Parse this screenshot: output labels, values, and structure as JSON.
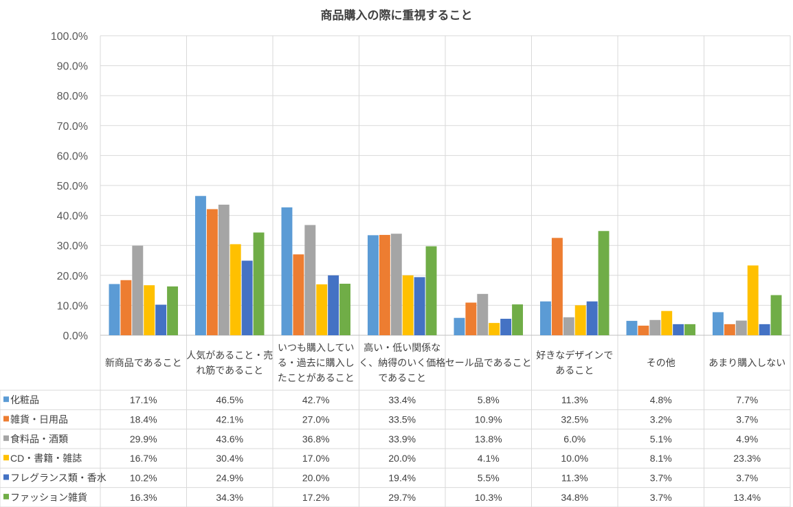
{
  "chart_data": {
    "type": "bar",
    "title": "商品購入の際に重視すること",
    "xlabel": "",
    "ylabel": "",
    "ylim": [
      0,
      100
    ],
    "yticks": [
      "0.0%",
      "10.0%",
      "20.0%",
      "30.0%",
      "40.0%",
      "50.0%",
      "60.0%",
      "70.0%",
      "80.0%",
      "90.0%",
      "100.0%"
    ],
    "grid": true,
    "legend": "data-table-left",
    "categories": [
      [
        "新商品であること"
      ],
      [
        "人気があること・売",
        "れ筋であること"
      ],
      [
        "いつも購入してい",
        "る・過去に購入し",
        "たことがあること"
      ],
      [
        "高い・低い関係な",
        "く、納得のいく価格",
        "であること"
      ],
      [
        "セール品であること"
      ],
      [
        "好きなデザインで",
        "あること"
      ],
      [
        "その他"
      ],
      [
        "あまり購入しない"
      ]
    ],
    "series": [
      {
        "name": "化粧品",
        "color": "#5B9BD5",
        "values": [
          17.1,
          46.5,
          42.7,
          33.4,
          5.8,
          11.3,
          4.8,
          7.7
        ],
        "labels": [
          "17.1%",
          "46.5%",
          "42.7%",
          "33.4%",
          "5.8%",
          "11.3%",
          "4.8%",
          "7.7%"
        ]
      },
      {
        "name": "雑貨・日用品",
        "color": "#ED7D31",
        "values": [
          18.4,
          42.1,
          27.0,
          33.5,
          10.9,
          32.5,
          3.2,
          3.7
        ],
        "labels": [
          "18.4%",
          "42.1%",
          "27.0%",
          "33.5%",
          "10.9%",
          "32.5%",
          "3.2%",
          "3.7%"
        ]
      },
      {
        "name": "食料品・酒類",
        "color": "#A5A5A5",
        "values": [
          29.9,
          43.6,
          36.8,
          33.9,
          13.8,
          6.0,
          5.1,
          4.9
        ],
        "labels": [
          "29.9%",
          "43.6%",
          "36.8%",
          "33.9%",
          "13.8%",
          "6.0%",
          "5.1%",
          "4.9%"
        ]
      },
      {
        "name": "CD・書籍・雑誌",
        "color": "#FFC000",
        "values": [
          16.7,
          30.4,
          17.0,
          20.0,
          4.1,
          10.0,
          8.1,
          23.3
        ],
        "labels": [
          "16.7%",
          "30.4%",
          "17.0%",
          "20.0%",
          "4.1%",
          "10.0%",
          "8.1%",
          "23.3%"
        ]
      },
      {
        "name": "フレグランス類・香水",
        "color": "#4472C4",
        "values": [
          10.2,
          24.9,
          20.0,
          19.4,
          5.5,
          11.3,
          3.7,
          3.7
        ],
        "labels": [
          "10.2%",
          "24.9%",
          "20.0%",
          "19.4%",
          "5.5%",
          "11.3%",
          "3.7%",
          "3.7%"
        ]
      },
      {
        "name": "ファッション雑貨",
        "color": "#70AD47",
        "values": [
          16.3,
          34.3,
          17.2,
          29.7,
          10.3,
          34.8,
          3.7,
          13.4
        ],
        "labels": [
          "16.3%",
          "34.3%",
          "17.2%",
          "29.7%",
          "10.3%",
          "34.8%",
          "3.7%",
          "13.4%"
        ]
      }
    ]
  }
}
